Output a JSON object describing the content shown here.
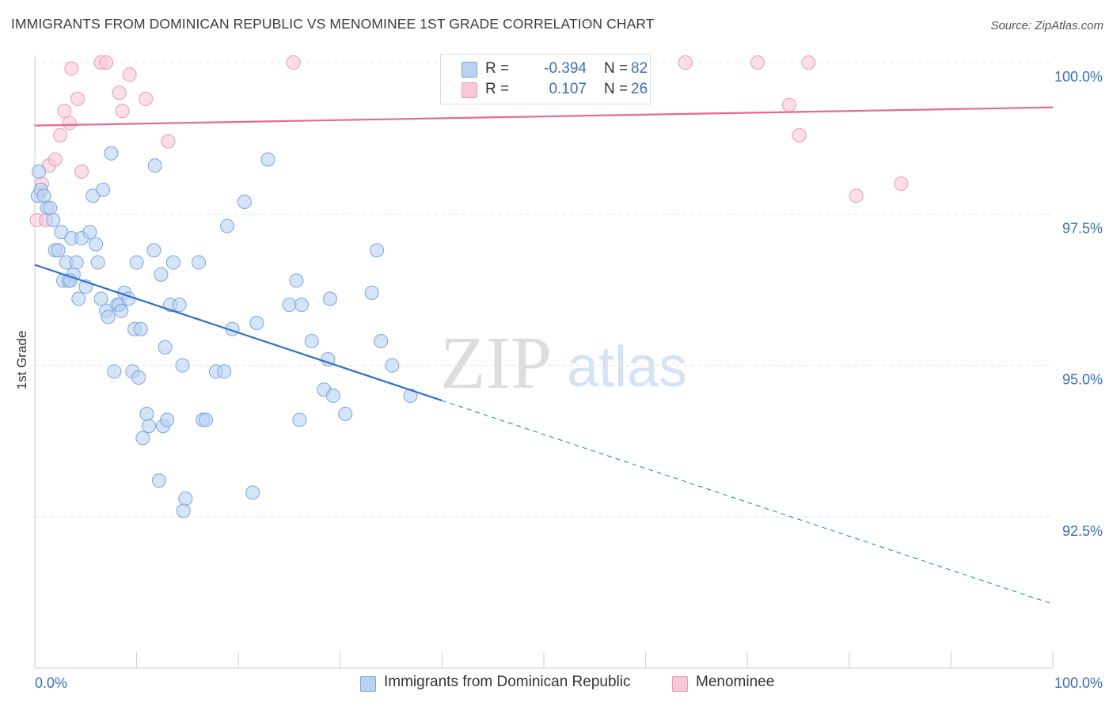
{
  "header": {
    "title": "IMMIGRANTS FROM DOMINICAN REPUBLIC VS MENOMINEE 1ST GRADE CORRELATION CHART",
    "source": "Source: ZipAtlas.com"
  },
  "watermark": {
    "part1": "ZIP",
    "part2": "atlas"
  },
  "legend": {
    "r_label": "R =",
    "n_label": "N =",
    "rows": [
      {
        "r": "-0.394",
        "n": "82"
      },
      {
        "r": "0.107",
        "n": "26"
      }
    ]
  },
  "colors": {
    "blue_fill": "#b9d2f2",
    "blue_stroke": "#7aa6e0",
    "blue_line": "#2f6fcc",
    "pink_fill": "#f8c8d6",
    "pink_stroke": "#ee9ab5",
    "pink_line": "#e8688e",
    "axis_label": "#3a6fc4",
    "grid": "#e4e4e4"
  },
  "chart_data": {
    "type": "scatter",
    "xlabel": "",
    "ylabel": "1st Grade",
    "xlim": [
      0,
      100
    ],
    "ylim": [
      90.2,
      100.3
    ],
    "x_tick_labels": [
      "0.0%",
      "100.0%"
    ],
    "y_ticks": [
      92.5,
      95.0,
      97.5,
      100.0
    ],
    "y_tick_labels": [
      "92.5%",
      "95.0%",
      "97.5%",
      "100.0%"
    ],
    "grid": true,
    "legend_position": "top-center",
    "series": [
      {
        "name": "Immigrants from Dominican Republic",
        "color": "#b9d2f2",
        "points": [
          [
            0.4,
            98.2
          ],
          [
            0.3,
            97.8
          ],
          [
            0.6,
            97.9
          ],
          [
            0.9,
            97.8
          ],
          [
            1.2,
            97.6
          ],
          [
            1.5,
            97.6
          ],
          [
            1.8,
            97.4
          ],
          [
            2.0,
            96.9
          ],
          [
            2.3,
            96.9
          ],
          [
            2.6,
            97.2
          ],
          [
            2.8,
            96.4
          ],
          [
            3.1,
            96.7
          ],
          [
            3.3,
            96.4
          ],
          [
            3.6,
            97.1
          ],
          [
            3.8,
            96.5
          ],
          [
            4.1,
            96.7
          ],
          [
            4.3,
            96.1
          ],
          [
            4.6,
            97.1
          ],
          [
            5.0,
            96.3
          ],
          [
            5.4,
            97.2
          ],
          [
            5.7,
            97.8
          ],
          [
            6.0,
            97.0
          ],
          [
            6.2,
            96.7
          ],
          [
            6.5,
            96.1
          ],
          [
            6.7,
            97.9
          ],
          [
            7.0,
            95.9
          ],
          [
            7.2,
            95.8
          ],
          [
            7.5,
            98.5
          ],
          [
            7.8,
            94.9
          ],
          [
            8.1,
            96.0
          ],
          [
            8.3,
            96.0
          ],
          [
            8.5,
            95.9
          ],
          [
            8.8,
            96.2
          ],
          [
            9.2,
            96.1
          ],
          [
            9.6,
            94.9
          ],
          [
            9.8,
            95.6
          ],
          [
            10.0,
            96.7
          ],
          [
            10.2,
            94.8
          ],
          [
            10.4,
            95.6
          ],
          [
            10.6,
            93.8
          ],
          [
            11.0,
            94.2
          ],
          [
            11.2,
            94.0
          ],
          [
            11.7,
            96.9
          ],
          [
            11.8,
            98.3
          ],
          [
            12.2,
            93.1
          ],
          [
            12.4,
            96.5
          ],
          [
            12.6,
            94.0
          ],
          [
            12.8,
            95.3
          ],
          [
            13.0,
            94.1
          ],
          [
            13.3,
            96.0
          ],
          [
            13.6,
            96.7
          ],
          [
            14.2,
            96.0
          ],
          [
            14.5,
            95.0
          ],
          [
            14.8,
            92.8
          ],
          [
            14.6,
            92.6
          ],
          [
            16.1,
            96.7
          ],
          [
            16.5,
            94.1
          ],
          [
            16.8,
            94.1
          ],
          [
            17.8,
            94.9
          ],
          [
            18.6,
            94.9
          ],
          [
            18.9,
            97.3
          ],
          [
            19.4,
            95.6
          ],
          [
            20.6,
            97.7
          ],
          [
            21.4,
            92.9
          ],
          [
            21.8,
            95.7
          ],
          [
            22.9,
            98.4
          ],
          [
            25.0,
            96.0
          ],
          [
            25.7,
            96.4
          ],
          [
            26.0,
            94.1
          ],
          [
            26.2,
            96.0
          ],
          [
            27.2,
            95.4
          ],
          [
            28.4,
            94.6
          ],
          [
            28.8,
            95.1
          ],
          [
            29.0,
            96.1
          ],
          [
            29.3,
            94.5
          ],
          [
            30.5,
            94.2
          ],
          [
            33.1,
            96.2
          ],
          [
            33.6,
            96.9
          ],
          [
            34.0,
            95.4
          ],
          [
            35.1,
            95.0
          ],
          [
            36.9,
            94.5
          ],
          [
            3.5,
            96.4
          ]
        ],
        "trend_solid": [
          [
            0,
            96.66
          ],
          [
            40,
            94.42
          ]
        ],
        "trend_dashed": [
          [
            40,
            94.42
          ],
          [
            100,
            91.06
          ]
        ]
      },
      {
        "name": "Menominee",
        "color": "#f8c8d6",
        "points": [
          [
            0.2,
            97.4
          ],
          [
            0.7,
            98.0
          ],
          [
            1.1,
            97.4
          ],
          [
            1.4,
            98.3
          ],
          [
            2.0,
            98.4
          ],
          [
            2.5,
            98.8
          ],
          [
            2.9,
            99.2
          ],
          [
            3.4,
            99.0
          ],
          [
            3.6,
            99.9
          ],
          [
            4.2,
            99.4
          ],
          [
            4.6,
            98.2
          ],
          [
            6.5,
            100.0
          ],
          [
            7.0,
            100.0
          ],
          [
            8.3,
            99.5
          ],
          [
            8.6,
            99.2
          ],
          [
            9.3,
            99.8
          ],
          [
            10.9,
            99.4
          ],
          [
            13.1,
            98.7
          ],
          [
            25.4,
            100.0
          ],
          [
            63.9,
            100.0
          ],
          [
            71.0,
            100.0
          ],
          [
            74.1,
            99.3
          ],
          [
            75.1,
            98.8
          ],
          [
            76.0,
            100.0
          ],
          [
            80.7,
            97.8
          ],
          [
            85.1,
            98.0
          ]
        ],
        "trend_solid": [
          [
            0,
            98.96
          ],
          [
            100,
            99.26
          ]
        ]
      }
    ]
  }
}
